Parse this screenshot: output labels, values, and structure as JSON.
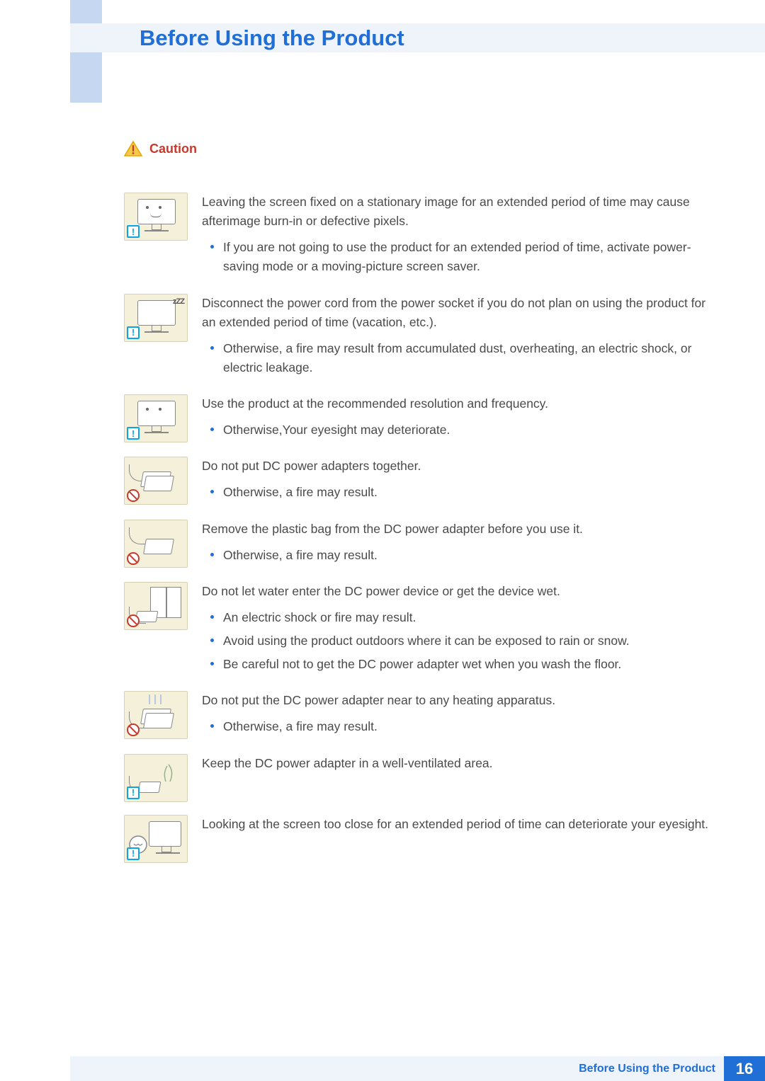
{
  "colors": {
    "title": "#1f6fd6",
    "title_bg": "#eff3fa",
    "side_tab": "#c6d7f2",
    "caution": "#c63a2d",
    "body_text": "#4a4a4a",
    "bullet": "#1f6fd6",
    "thumb_bg": "#f5f0da",
    "info_badge": "#0aa6e8",
    "page_bg": "#1f6fd6"
  },
  "header": {
    "title": "Before Using the Product"
  },
  "caution": {
    "label": "Caution"
  },
  "sections": [
    {
      "badge": "info",
      "art": "monitor-face",
      "lead": "Leaving the screen fixed on a stationary image for an extended period of time may cause afterimage burn-in or defective pixels.",
      "bullets": [
        "If you are not going to use the product for an extended period of time, activate power-saving mode or a moving-picture screen saver."
      ]
    },
    {
      "badge": "info",
      "art": "monitor-sleep",
      "lead": "Disconnect the power cord from the power socket if you do not plan on using the product for an extended period of time (vacation, etc.).",
      "bullets": [
        "Otherwise, a fire may result from accumulated dust, overheating, an electric shock, or electric leakage."
      ]
    },
    {
      "badge": "info",
      "art": "monitor-squint",
      "lead": "Use the product at the recommended resolution and frequency.",
      "bullets": [
        "Otherwise,Your eyesight may deteriorate."
      ]
    },
    {
      "badge": "prohibit",
      "art": "adapters-stack",
      "lead": "Do not put DC power adapters together.",
      "bullets": [
        "Otherwise, a fire may result."
      ]
    },
    {
      "badge": "prohibit",
      "art": "adapter-single",
      "lead": "Remove the plastic bag from the DC power adapter before you use it.",
      "bullets": [
        "Otherwise, a fire may result."
      ]
    },
    {
      "badge": "prohibit",
      "art": "adapter-window",
      "lead": "Do not let water enter the DC power device or get the device wet.",
      "bullets": [
        "An electric shock or fire may result.",
        "Avoid using the product outdoors where it can be exposed to rain or snow.",
        "Be careful not to get the DC power adapter wet when you wash the floor."
      ]
    },
    {
      "badge": "prohibit",
      "art": "adapter-heat",
      "lead": "Do not put the DC power adapter near to any heating apparatus.",
      "bullets": [
        "Otherwise, a fire may result."
      ]
    },
    {
      "badge": "info",
      "art": "adapter-ventilated",
      "lead": "Keep the DC power adapter in a well-ventilated area.",
      "bullets": []
    },
    {
      "badge": "info",
      "art": "eyes-close",
      "lead": "Looking at the screen too close for an extended period of time can deteriorate your eyesight.",
      "bullets": []
    }
  ],
  "footer": {
    "label": "Before Using the Product",
    "page": "16"
  }
}
